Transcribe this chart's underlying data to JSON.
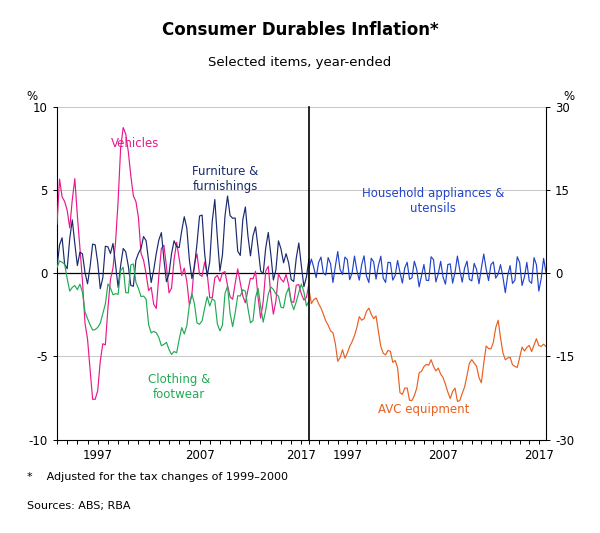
{
  "title": "Consumer Durables Inflation*",
  "subtitle": "Selected items, year-ended",
  "ylabel_left": "%",
  "ylabel_right": "%",
  "footnote": "*    Adjusted for the tax changes of 1999–2000",
  "sources": "Sources: ABS; RBA",
  "left_ylim": [
    -10,
    10
  ],
  "right_ylim": [
    -30,
    30
  ],
  "left_yticks": [
    -10,
    -5,
    0,
    5,
    10
  ],
  "right_yticks": [
    -30,
    -15,
    0,
    15,
    30
  ],
  "left_yticklabels": [
    "-10",
    "-5",
    "0",
    "5",
    "10"
  ],
  "right_yticklabels": [
    "-30",
    "-15",
    "0",
    "15",
    "30"
  ],
  "xticks_labels": [
    1997,
    2007,
    2017
  ],
  "background_color": "#ffffff",
  "grid_color": "#b0b0b0",
  "colors": {
    "vehicles": "#e8198b",
    "furniture": "#1a2a6e",
    "clothing": "#22aa55",
    "appliances": "#2244cc",
    "avc": "#e86020"
  },
  "label_vehicles": "Vehicles",
  "label_furniture": "Furniture &\nfurnishings",
  "label_clothing": "Clothing &\nfootwear",
  "label_appliances": "Household appliances &\nutensils",
  "label_avc": "AVC equipment"
}
